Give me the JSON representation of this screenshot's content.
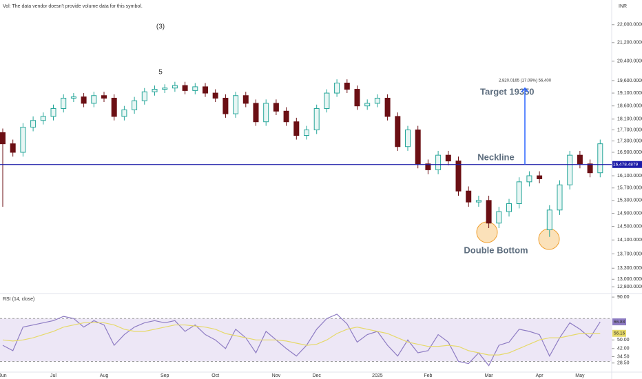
{
  "note": "Vol: The data vendor doesn't provide volume data for this symbol.",
  "currency": "INR",
  "annotations": [
    "(3)",
    "5",
    "Target 19350",
    "Neckline",
    "Double Bottom"
  ],
  "chart_data": [
    {
      "type": "candlestick",
      "log_scale": true,
      "categories": [
        "Jun",
        null,
        null,
        null,
        null,
        "Jul",
        null,
        null,
        null,
        null,
        "Aug",
        null,
        null,
        null,
        null,
        null,
        "Sep",
        null,
        null,
        null,
        null,
        "Oct",
        null,
        null,
        null,
        null,
        null,
        "Nov",
        null,
        null,
        null,
        "Dec",
        null,
        null,
        null,
        null,
        null,
        "2025",
        null,
        null,
        null,
        null,
        "Feb",
        null,
        null,
        null,
        null,
        null,
        "Mar",
        null,
        null,
        null,
        null,
        "Apr",
        null,
        null,
        null,
        "May",
        null,
        null
      ],
      "open": [
        17600,
        17200,
        16900,
        17800,
        18050,
        18200,
        18500,
        18900,
        18950,
        18700,
        19000,
        18900,
        18200,
        18450,
        18800,
        19150,
        19250,
        19300,
        19400,
        19200,
        19350,
        19100,
        18900,
        18300,
        19000,
        18700,
        18000,
        18700,
        18400,
        18000,
        17500,
        17700,
        18500,
        19100,
        19500,
        19250,
        18600,
        18700,
        18900,
        18200,
        17100,
        17700,
        16500,
        16300,
        16800,
        16600,
        15600,
        15250,
        15300,
        14600,
        14950,
        15200,
        15900,
        16100,
        14400,
        15000,
        15800,
        16800,
        16500,
        16200
      ],
      "high": [
        17750,
        17350,
        17950,
        18200,
        18350,
        18650,
        19050,
        19100,
        19100,
        19150,
        19150,
        19050,
        18600,
        18950,
        19300,
        19400,
        19450,
        19550,
        19550,
        19500,
        19500,
        19250,
        19050,
        19150,
        19150,
        18850,
        18850,
        18850,
        18550,
        18150,
        17850,
        18650,
        19250,
        19650,
        19650,
        19400,
        18850,
        19050,
        19050,
        18350,
        17850,
        17850,
        16650,
        16950,
        16950,
        16750,
        15750,
        15450,
        15450,
        15100,
        15350,
        16050,
        16250,
        16250,
        15150,
        15950,
        16950,
        16950,
        16650,
        17350
      ],
      "low": [
        15100,
        16750,
        16750,
        17650,
        17900,
        18050,
        18350,
        18750,
        18550,
        18550,
        18750,
        18050,
        18050,
        18300,
        18650,
        19000,
        19100,
        19150,
        19050,
        19050,
        18950,
        18750,
        18150,
        18150,
        18550,
        17850,
        17850,
        18250,
        17850,
        17350,
        17350,
        17550,
        18350,
        18950,
        19100,
        18450,
        18450,
        18550,
        18050,
        16950,
        16950,
        16350,
        16150,
        16150,
        16450,
        15450,
        15100,
        15100,
        14450,
        14450,
        14800,
        15050,
        15750,
        15850,
        14190,
        14850,
        15650,
        16350,
        16050,
        16050
      ],
      "close": [
        17200,
        16900,
        17800,
        18050,
        18200,
        18500,
        18900,
        18950,
        18700,
        19000,
        18900,
        18200,
        18450,
        18800,
        19150,
        19250,
        19300,
        19400,
        19200,
        19350,
        19100,
        18900,
        18300,
        19000,
        18700,
        18000,
        18700,
        18400,
        18000,
        17500,
        17700,
        18500,
        19100,
        19500,
        19250,
        18600,
        18700,
        18900,
        18200,
        17100,
        17700,
        16500,
        16300,
        16800,
        16600,
        15600,
        15250,
        15300,
        14600,
        14950,
        15200,
        15900,
        16100,
        16000,
        15000,
        15800,
        16800,
        16500,
        16200,
        17200
      ],
      "up_color": "#26a69a",
      "down_color": "#6b0f14",
      "ylim": [
        12640,
        23150
      ],
      "yticks": [
        {
          "value": 22000,
          "label": "22,000.0000"
        },
        {
          "value": 21200,
          "label": "21,200.0000"
        },
        {
          "value": 20400,
          "label": "20,400.0000"
        },
        {
          "value": 19600,
          "label": "19,600.0000"
        },
        {
          "value": 19100,
          "label": "19,100.0000"
        },
        {
          "value": 18600,
          "label": "18,600.0000"
        },
        {
          "value": 18100,
          "label": "18,100.0000"
        },
        {
          "value": 17700,
          "label": "17,700.0000"
        },
        {
          "value": 17300,
          "label": "17,300.0000"
        },
        {
          "value": 16900,
          "label": "16,900.0000"
        },
        {
          "value": 16100,
          "label": "16,100.0000"
        },
        {
          "value": 15700,
          "label": "15,700.0000"
        },
        {
          "value": 15300,
          "label": "15,300.0000"
        },
        {
          "value": 14900,
          "label": "14,900.0000"
        },
        {
          "value": 14500,
          "label": "14,500.0000"
        },
        {
          "value": 14100,
          "label": "14,100.0000"
        },
        {
          "value": 13700,
          "label": "13,700.0000"
        },
        {
          "value": 13300,
          "label": "13,300.0000"
        },
        {
          "value": 13000,
          "label": "13,000.0000"
        },
        {
          "value": 12800,
          "label": "12,800.0000"
        }
      ],
      "hline": {
        "value": 16478.4879,
        "label": "16,478.4879",
        "color": "#1c1ca8"
      },
      "measure": {
        "from": 16478.4879,
        "to": 19298.5,
        "label": "2,820.0165 (17.09%) 56,400",
        "color": "#2962ff"
      }
    },
    {
      "type": "line",
      "title": "RSI (14, close)",
      "series": [
        {
          "name": "RSI",
          "color": "#8e7cc3",
          "values": [
            45,
            40,
            62,
            64,
            66,
            68,
            72,
            70,
            62,
            68,
            64,
            45,
            55,
            62,
            66,
            68,
            66,
            68,
            58,
            64,
            55,
            50,
            42,
            60,
            52,
            38,
            58,
            50,
            42,
            35,
            45,
            60,
            70,
            74,
            65,
            48,
            55,
            58,
            45,
            35,
            50,
            38,
            40,
            55,
            48,
            30,
            28,
            38,
            26,
            45,
            48,
            60,
            58,
            55,
            35,
            52,
            66,
            60,
            52,
            66.88
          ]
        },
        {
          "name": "MA",
          "color": "#e6d96a",
          "values": [
            50,
            49,
            50,
            52,
            55,
            58,
            62,
            64,
            66,
            66,
            66,
            64,
            60,
            58,
            58,
            60,
            62,
            64,
            64,
            63,
            62,
            60,
            56,
            54,
            52,
            50,
            50,
            50,
            49,
            47,
            45,
            46,
            50,
            56,
            60,
            62,
            60,
            58,
            56,
            52,
            48,
            46,
            44,
            44,
            45,
            44,
            40,
            38,
            36,
            36,
            38,
            42,
            46,
            50,
            52,
            52,
            54,
            56,
            56,
            56.16
          ]
        }
      ],
      "band": [
        30,
        70
      ],
      "band_color": "#ede7f6",
      "ylim": [
        20,
        92
      ],
      "yticks": [
        {
          "value": 90,
          "label": "90.00"
        },
        {
          "value": 50,
          "label": "50.00"
        },
        {
          "value": 42,
          "label": "42.00"
        },
        {
          "value": 34.5,
          "label": "34.50"
        },
        {
          "value": 28.5,
          "label": "28.50"
        }
      ]
    }
  ]
}
